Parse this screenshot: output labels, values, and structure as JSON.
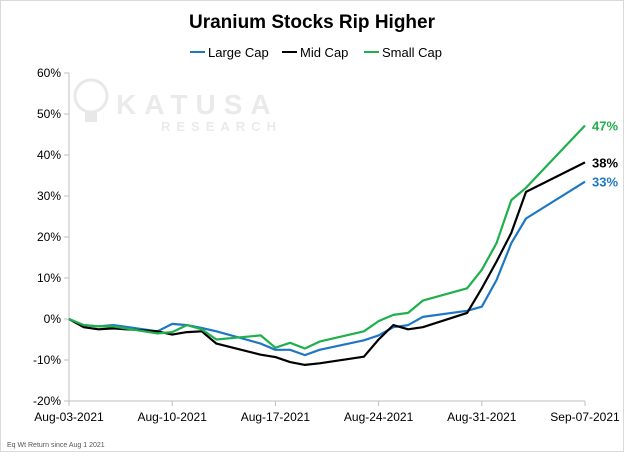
{
  "chart_data": {
    "type": "line",
    "title": "Uranium Stocks Rip Higher",
    "xlabel": "",
    "ylabel": "",
    "footnote": "Eq Wt Return since Aug 1 2021",
    "watermark": {
      "name": "KATUSA",
      "sub": "RESEARCH"
    },
    "ylim": [
      -20,
      60
    ],
    "yticks": [
      -20,
      -10,
      0,
      10,
      20,
      30,
      40,
      50,
      60
    ],
    "ytick_labels": [
      "-20%",
      "-10%",
      "0%",
      "10%",
      "20%",
      "30%",
      "40%",
      "50%",
      "60%"
    ],
    "xlim": [
      "2021-08-03",
      "2021-09-07"
    ],
    "xticks": [
      "2021-08-03",
      "2021-08-10",
      "2021-08-17",
      "2021-08-24",
      "2021-08-31",
      "2021-09-07"
    ],
    "xtick_labels": [
      "Aug-03-2021",
      "Aug-10-2021",
      "Aug-17-2021",
      "Aug-24-2021",
      "Aug-31-2021",
      "Sep-07-2021"
    ],
    "grid": false,
    "legend": "top",
    "series": [
      {
        "name": "Large Cap",
        "color": "#1f77c4",
        "end_label": "33%",
        "points": [
          [
            "2021-08-03",
            0
          ],
          [
            "2021-08-04",
            -1.5
          ],
          [
            "2021-08-05",
            -1.8
          ],
          [
            "2021-08-06",
            -1.5
          ],
          [
            "2021-08-09",
            -3
          ],
          [
            "2021-08-10",
            -1.2
          ],
          [
            "2021-08-11",
            -1.5
          ],
          [
            "2021-08-12",
            -2.2
          ],
          [
            "2021-08-13",
            -3
          ],
          [
            "2021-08-16",
            -6
          ],
          [
            "2021-08-17",
            -7.5
          ],
          [
            "2021-08-18",
            -7.5
          ],
          [
            "2021-08-19",
            -8.8
          ],
          [
            "2021-08-20",
            -7.5
          ],
          [
            "2021-08-23",
            -5.2
          ],
          [
            "2021-08-24",
            -4
          ],
          [
            "2021-08-25",
            -2
          ],
          [
            "2021-08-26",
            -1.5
          ],
          [
            "2021-08-27",
            0.5
          ],
          [
            "2021-08-30",
            2
          ],
          [
            "2021-08-31",
            3
          ],
          [
            "2021-09-01",
            9.5
          ],
          [
            "2021-09-02",
            18.5
          ],
          [
            "2021-09-03",
            24.5
          ],
          [
            "2021-09-07",
            33.5
          ]
        ]
      },
      {
        "name": "Mid Cap",
        "color": "#000000",
        "end_label": "38%",
        "points": [
          [
            "2021-08-03",
            0
          ],
          [
            "2021-08-04",
            -2
          ],
          [
            "2021-08-05",
            -2.5
          ],
          [
            "2021-08-06",
            -2.3
          ],
          [
            "2021-08-09",
            -3
          ],
          [
            "2021-08-10",
            -3.8
          ],
          [
            "2021-08-11",
            -3.2
          ],
          [
            "2021-08-12",
            -3
          ],
          [
            "2021-08-13",
            -6
          ],
          [
            "2021-08-16",
            -8.7
          ],
          [
            "2021-08-17",
            -9.3
          ],
          [
            "2021-08-18",
            -10.5
          ],
          [
            "2021-08-19",
            -11.2
          ],
          [
            "2021-08-20",
            -10.8
          ],
          [
            "2021-08-23",
            -9.2
          ],
          [
            "2021-08-24",
            -5
          ],
          [
            "2021-08-25",
            -1.5
          ],
          [
            "2021-08-26",
            -2.5
          ],
          [
            "2021-08-27",
            -2
          ],
          [
            "2021-08-30",
            1.5
          ],
          [
            "2021-08-31",
            7.5
          ],
          [
            "2021-09-01",
            14
          ],
          [
            "2021-09-02",
            21
          ],
          [
            "2021-09-03",
            31
          ],
          [
            "2021-09-07",
            38.2
          ]
        ]
      },
      {
        "name": "Small Cap",
        "color": "#1fb04b",
        "end_label": "47%",
        "points": [
          [
            "2021-08-03",
            0
          ],
          [
            "2021-08-04",
            -1.5
          ],
          [
            "2021-08-05",
            -1.8
          ],
          [
            "2021-08-06",
            -1.8
          ],
          [
            "2021-08-09",
            -3.5
          ],
          [
            "2021-08-10",
            -3.2
          ],
          [
            "2021-08-11",
            -1.5
          ],
          [
            "2021-08-12",
            -2.5
          ],
          [
            "2021-08-13",
            -5
          ],
          [
            "2021-08-16",
            -4
          ],
          [
            "2021-08-17",
            -7
          ],
          [
            "2021-08-18",
            -5.8
          ],
          [
            "2021-08-19",
            -7.2
          ],
          [
            "2021-08-20",
            -5.5
          ],
          [
            "2021-08-23",
            -3
          ],
          [
            "2021-08-24",
            -0.5
          ],
          [
            "2021-08-25",
            1
          ],
          [
            "2021-08-26",
            1.5
          ],
          [
            "2021-08-27",
            4.5
          ],
          [
            "2021-08-30",
            7.5
          ],
          [
            "2021-08-31",
            12
          ],
          [
            "2021-09-01",
            18.5
          ],
          [
            "2021-09-02",
            29
          ],
          [
            "2021-09-03",
            32
          ],
          [
            "2021-09-07",
            47.2
          ]
        ]
      }
    ]
  }
}
